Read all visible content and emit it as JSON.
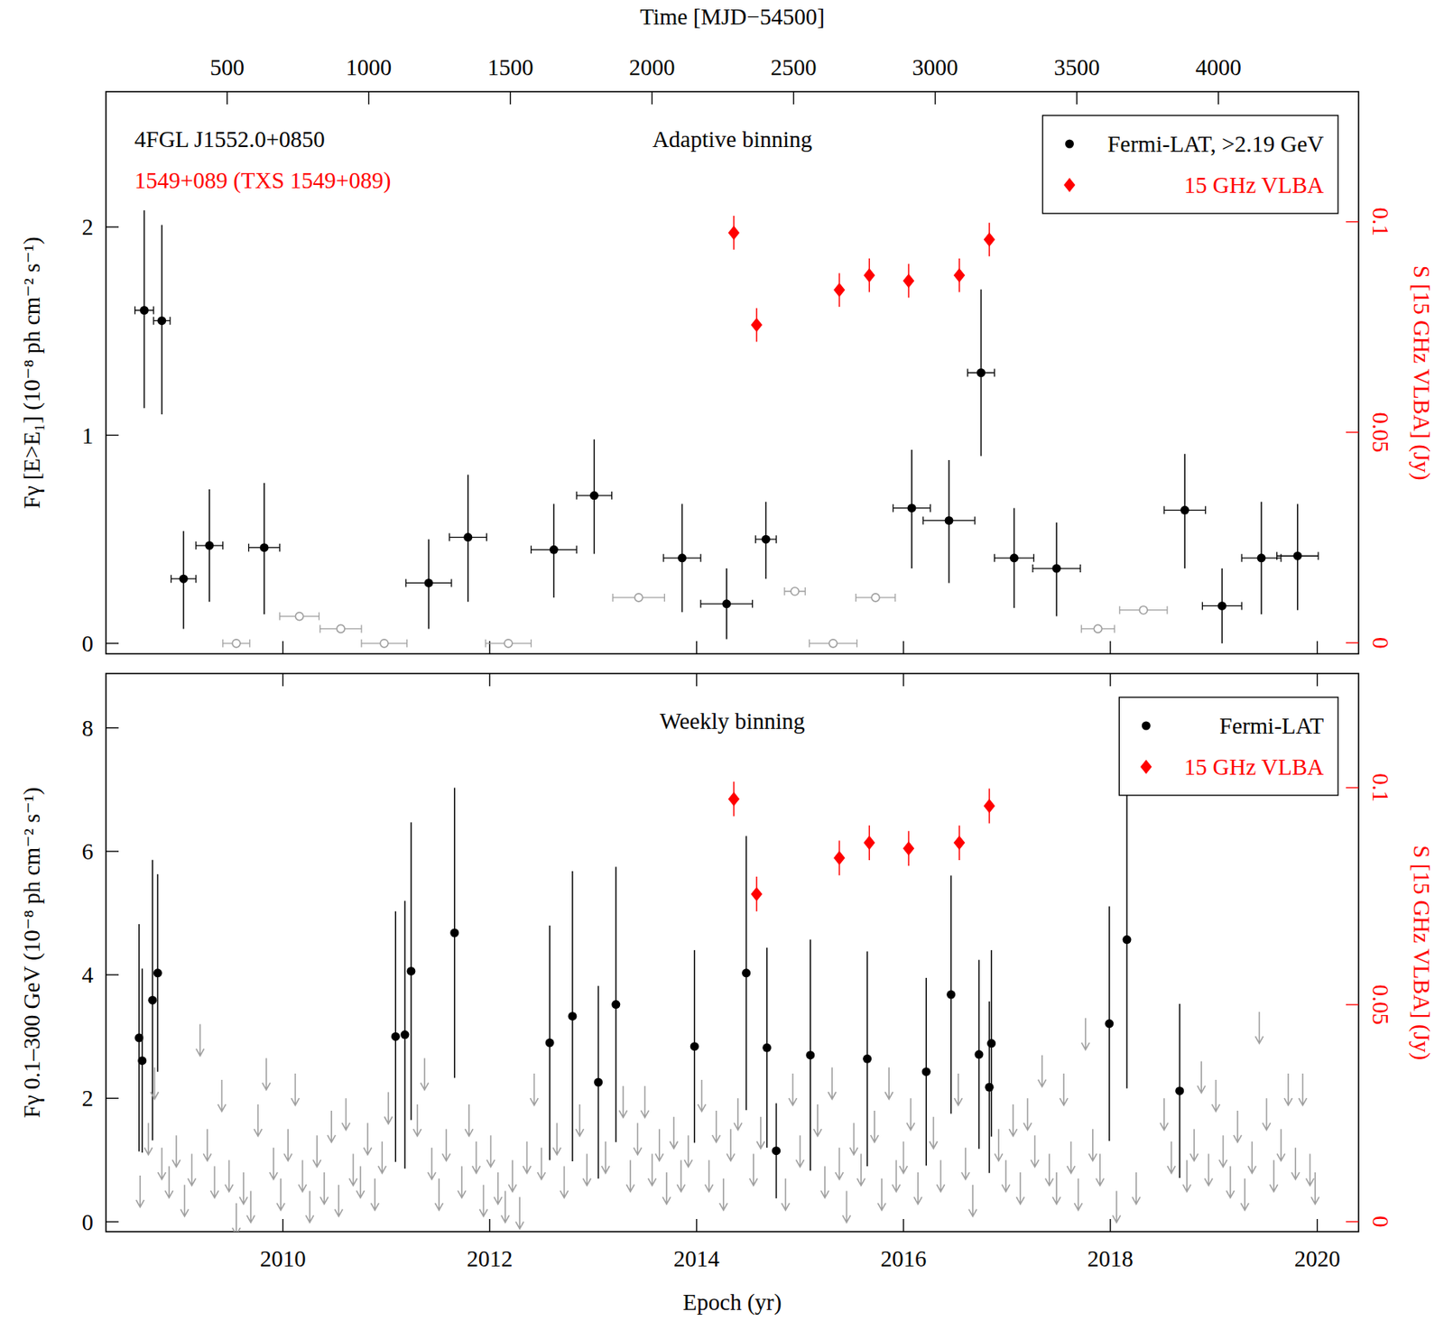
{
  "chart_data": [
    {
      "type": "scatter",
      "title": "Adaptive binning",
      "annotations": [
        {
          "text": "4FGL J1552.0+0850",
          "color": "#000000"
        },
        {
          "text": "1549+089 (TXS 1549+089)",
          "color": "#ff0000"
        }
      ],
      "ylabel": "Fγ [E>E₁] (10⁻⁸ ph cm⁻² s⁻¹)",
      "y2label": "S [15 GHz VLBA] (Jy)",
      "x2label": "Time [MJD−54500]",
      "xlim": [
        2008.29,
        2020.4
      ],
      "xticks": [
        2010,
        2012,
        2014,
        2016,
        2018,
        2020
      ],
      "x2lim": [
        72,
        4495
      ],
      "x2ticks": [
        500,
        1000,
        1500,
        2000,
        2500,
        3000,
        3500,
        4000
      ],
      "ylim": [
        -0.05,
        2.65
      ],
      "yticks": [
        0,
        1,
        2
      ],
      "y2lim": [
        -0.0026,
        0.1309
      ],
      "y2ticks": [
        0,
        0.05,
        0.1
      ],
      "legend": "upper right",
      "series": [
        {
          "name": "Fermi-LAT, >2.19 GeV",
          "color": "#000000",
          "marker": "circle",
          "x": [
            2008.66,
            2008.83,
            2009.04,
            2009.29,
            2009.82,
            2011.41,
            2011.79,
            2012.62,
            2013.01,
            2013.86,
            2014.29,
            2014.67,
            2016.08,
            2016.44,
            2016.75,
            2017.07,
            2017.48,
            2018.72,
            2019.08,
            2019.46,
            2019.81
          ],
          "values": [
            1.6,
            1.55,
            0.31,
            0.47,
            0.46,
            0.29,
            0.51,
            0.45,
            0.71,
            0.41,
            0.19,
            0.5,
            0.65,
            0.59,
            1.3,
            0.41,
            0.36,
            0.64,
            0.18,
            0.41,
            0.42
          ],
          "x_err": [
            0.09,
            0.08,
            0.12,
            0.13,
            0.15,
            0.22,
            0.18,
            0.22,
            0.17,
            0.18,
            0.25,
            0.1,
            0.18,
            0.25,
            0.13,
            0.19,
            0.23,
            0.2,
            0.19,
            0.19,
            0.2
          ],
          "y_err_low": [
            0.47,
            0.45,
            0.24,
            0.27,
            0.32,
            0.22,
            0.31,
            0.23,
            0.28,
            0.26,
            0.17,
            0.19,
            0.29,
            0.3,
            0.4,
            0.24,
            0.23,
            0.28,
            0.18,
            0.27,
            0.26
          ],
          "y_err_high": [
            0.48,
            0.46,
            0.23,
            0.27,
            0.31,
            0.21,
            0.3,
            0.22,
            0.27,
            0.26,
            0.17,
            0.18,
            0.28,
            0.29,
            0.4,
            0.24,
            0.22,
            0.27,
            0.18,
            0.27,
            0.25
          ]
        },
        {
          "color": "#a0a0a0",
          "marker": "open_circle",
          "x": [
            2009.55,
            2010.16,
            2010.56,
            2010.98,
            2012.18,
            2013.44,
            2014.95,
            2015.32,
            2015.73,
            2017.88,
            2018.32
          ],
          "values": [
            0.0,
            0.13,
            0.07,
            0.0,
            0.0,
            0.22,
            0.25,
            0.0,
            0.22,
            0.07,
            0.16
          ],
          "x_err": [
            0.13,
            0.19,
            0.2,
            0.22,
            0.22,
            0.25,
            0.1,
            0.23,
            0.19,
            0.16,
            0.23
          ]
        },
        {
          "name": "15 GHz VLBA",
          "color": "#ff0000",
          "marker": "diamond",
          "axis": "y2",
          "x": [
            2014.36,
            2014.58,
            2015.38,
            2015.67,
            2016.05,
            2016.54,
            2016.83
          ],
          "values": [
            0.0974,
            0.0755,
            0.0838,
            0.0873,
            0.086,
            0.0873,
            0.0958
          ],
          "y_err": [
            0.004,
            0.004,
            0.004,
            0.004,
            0.004,
            0.004,
            0.004
          ]
        }
      ]
    },
    {
      "type": "scatter",
      "title": "Weekly binning",
      "xlabel": "Epoch (yr)",
      "ylabel": "Fγ 0.1–300 GeV (10⁻⁸ ph cm⁻² s⁻¹)",
      "y2label": "S [15 GHz VLBA] (Jy)",
      "xlim": [
        2008.29,
        2020.4
      ],
      "xticks": [
        2010,
        2012,
        2014,
        2016,
        2018,
        2020
      ],
      "ylim": [
        -0.16,
        8.88
      ],
      "yticks": [
        0,
        2,
        4,
        6,
        8
      ],
      "y2lim": [
        -0.0023,
        0.1263
      ],
      "y2ticks": [
        0,
        0.05,
        0.1
      ],
      "legend": "upper right",
      "series": [
        {
          "name": "Fermi-LAT",
          "color": "#000000",
          "marker": "circle",
          "x": [
            2008.61,
            2008.64,
            2008.74,
            2008.79,
            2011.09,
            2011.18,
            2011.24,
            2011.66,
            2012.58,
            2012.8,
            2013.05,
            2013.22,
            2013.98,
            2014.48,
            2014.68,
            2014.77,
            2015.1,
            2015.65,
            2016.22,
            2016.46,
            2016.73,
            2016.83,
            2016.85,
            2017.99,
            2018.16,
            2018.67
          ],
          "values": [
            2.98,
            2.61,
            3.59,
            4.03,
            3.0,
            3.03,
            4.06,
            4.68,
            2.9,
            3.33,
            2.26,
            3.52,
            2.84,
            4.03,
            2.82,
            1.15,
            2.7,
            2.64,
            2.43,
            3.68,
            2.71,
            2.18,
            2.89,
            3.21,
            4.57,
            2.12
          ],
          "y_err": [
            1.84,
            1.49,
            2.27,
            1.6,
            2.03,
            2.17,
            2.41,
            2.35,
            1.9,
            2.35,
            1.56,
            2.23,
            1.56,
            2.22,
            1.62,
            0.77,
            1.87,
            1.74,
            1.52,
            1.93,
            1.53,
            1.39,
            1.51,
            1.9,
            2.41,
            1.41
          ]
        },
        {
          "color": "#a0a0a0",
          "marker": "arrow_down",
          "x": [
            2008.62,
            2008.7,
            2008.76,
            2008.83,
            2008.9,
            2008.97,
            2009.05,
            2009.12,
            2009.2,
            2009.27,
            2009.34,
            2009.41,
            2009.48,
            2009.55,
            2009.62,
            2009.69,
            2009.76,
            2009.84,
            2009.91,
            2009.98,
            2010.05,
            2010.12,
            2010.19,
            2010.26,
            2010.33,
            2010.4,
            2010.47,
            2010.54,
            2010.61,
            2010.68,
            2010.75,
            2010.82,
            2010.89,
            2010.96,
            2011.02,
            2011.3,
            2011.37,
            2011.44,
            2011.51,
            2011.58,
            2011.73,
            2011.8,
            2011.87,
            2011.94,
            2012.01,
            2012.08,
            2012.15,
            2012.22,
            2012.29,
            2012.36,
            2012.43,
            2012.5,
            2012.65,
            2012.72,
            2012.87,
            2012.94,
            2013.12,
            2013.29,
            2013.36,
            2013.43,
            2013.5,
            2013.57,
            2013.64,
            2013.71,
            2013.78,
            2013.85,
            2013.92,
            2014.05,
            2014.12,
            2014.19,
            2014.26,
            2014.33,
            2014.4,
            2014.55,
            2014.62,
            2014.86,
            2014.93,
            2015.0,
            2015.17,
            2015.24,
            2015.31,
            2015.38,
            2015.45,
            2015.52,
            2015.59,
            2015.72,
            2015.79,
            2015.86,
            2015.93,
            2016.0,
            2016.07,
            2016.14,
            2016.29,
            2016.36,
            2016.53,
            2016.6,
            2016.67,
            2016.92,
            2016.99,
            2017.06,
            2017.13,
            2017.2,
            2017.27,
            2017.34,
            2017.41,
            2017.48,
            2017.55,
            2017.62,
            2017.69,
            2017.76,
            2017.83,
            2017.9,
            2018.06,
            2018.25,
            2018.52,
            2018.59,
            2018.74,
            2018.81,
            2018.88,
            2018.95,
            2019.02,
            2019.09,
            2019.16,
            2019.23,
            2019.3,
            2019.37,
            2019.44,
            2019.51,
            2019.58,
            2019.65,
            2019.72,
            2019.79,
            2019.86,
            2019.93,
            2019.98
          ],
          "values": [
            0.75,
            1.6,
            2.5,
            1.2,
            0.9,
            1.4,
            0.6,
            1.1,
            3.2,
            1.5,
            0.9,
            2.3,
            1.0,
            0.3,
            0.8,
            0.5,
            1.9,
            2.65,
            1.2,
            0.7,
            1.5,
            2.4,
            1.0,
            0.5,
            1.4,
            0.8,
            1.8,
            0.6,
            2.0,
            1.1,
            0.9,
            1.6,
            0.7,
            1.3,
            2.1,
            1.9,
            2.65,
            1.2,
            0.7,
            1.5,
            0.9,
            1.9,
            1.3,
            0.6,
            1.4,
            0.8,
            0.5,
            1.0,
            0.4,
            1.3,
            2.4,
            1.2,
            1.6,
            0.9,
            1.9,
            1.1,
            1.3,
            2.2,
            1.0,
            1.6,
            2.2,
            1.1,
            1.5,
            0.8,
            1.7,
            1.0,
            1.4,
            2.3,
            1.0,
            1.8,
            0.7,
            1.5,
            2.0,
            1.1,
            1.7,
            0.7,
            2.4,
            1.4,
            1.9,
            0.9,
            2.5,
            1.2,
            0.5,
            1.6,
            1.1,
            1.8,
            0.7,
            2.5,
            1.0,
            1.3,
            2.0,
            0.8,
            1.7,
            1.0,
            2.4,
            1.2,
            0.6,
            1.5,
            1.0,
            1.9,
            0.8,
            2.0,
            1.4,
            2.7,
            1.1,
            0.8,
            2.4,
            1.3,
            0.7,
            3.3,
            1.5,
            1.1,
            0.5,
            0.8,
            2.0,
            1.3,
            1.0,
            1.5,
            2.6,
            1.1,
            2.3,
            1.4,
            0.9,
            1.8,
            0.7,
            1.3,
            3.4,
            2.0,
            1.0,
            1.5,
            2.4,
            1.2,
            2.4,
            1.1,
            0.8
          ]
        },
        {
          "name": "15 GHz VLBA",
          "color": "#ff0000",
          "marker": "diamond",
          "axis": "y2",
          "x": [
            2014.36,
            2014.58,
            2015.38,
            2015.67,
            2016.05,
            2016.54,
            2016.83
          ],
          "values": [
            0.0974,
            0.0755,
            0.0838,
            0.0873,
            0.086,
            0.0873,
            0.0958
          ],
          "y_err": [
            0.004,
            0.004,
            0.004,
            0.004,
            0.004,
            0.004,
            0.004
          ]
        }
      ]
    }
  ]
}
